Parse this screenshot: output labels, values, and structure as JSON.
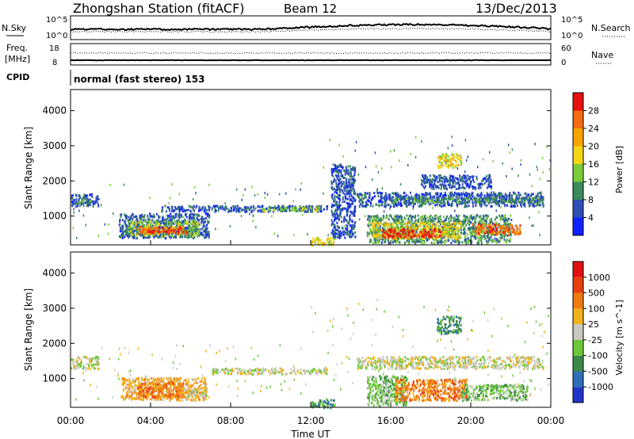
{
  "header": {
    "station": "Zhongshan Station (fitACF)",
    "beam": "Beam 12",
    "date": "13/Dec/2013"
  },
  "panels": {
    "nsky_label": "N.Sky",
    "nsearch_label": "N.Search",
    "freq_label": "Freq.",
    "freq_unit": "[MHz]",
    "nave_label": "Nave",
    "cpid_label": "CPID",
    "cpid_value": "normal (fast stereo) 153",
    "nsky_ticks": [
      "10^5",
      "10^0"
    ],
    "freq_ticks": [
      "18",
      "8"
    ],
    "nave_ticks": [
      "60",
      "0"
    ]
  },
  "chart_data": [
    {
      "type": "heatmap",
      "name": "power",
      "xlabel": "",
      "ylabel": "Slant Range [km]",
      "xlim": [
        0,
        24
      ],
      "ylim": [
        180,
        4600
      ],
      "yticks": [
        "1000",
        "2000",
        "3000",
        "4000"
      ],
      "colorbar": {
        "label": "Power [dB]",
        "ticks": [
          "4",
          "8",
          "12",
          "16",
          "20",
          "24",
          "28"
        ],
        "colors": [
          "#1020ff",
          "#2e4fb4",
          "#3a8a5a",
          "#7acb3a",
          "#f3d516",
          "#f7a400",
          "#f36a10",
          "#e61010"
        ]
      },
      "blobs": [
        {
          "t0": 0.0,
          "t1": 1.4,
          "r0": 1300,
          "r1": 1650,
          "c": 1
        },
        {
          "t0": 0.3,
          "t1": 1.1,
          "r0": 1380,
          "r1": 1520,
          "c": 2
        },
        {
          "t0": 2.4,
          "t1": 6.9,
          "r0": 400,
          "r1": 1100,
          "c": 1
        },
        {
          "t0": 2.8,
          "t1": 6.4,
          "r0": 450,
          "r1": 900,
          "c": 3
        },
        {
          "t0": 3.3,
          "t1": 5.8,
          "r0": 520,
          "r1": 720,
          "c": 6
        },
        {
          "t0": 3.8,
          "t1": 5.4,
          "r0": 560,
          "r1": 650,
          "c": 7
        },
        {
          "t0": 4.5,
          "t1": 12.8,
          "r0": 1150,
          "r1": 1320,
          "c": 1
        },
        {
          "t0": 9.5,
          "t1": 12.4,
          "r0": 1170,
          "r1": 1280,
          "c": 3
        },
        {
          "t0": 12.0,
          "t1": 13.2,
          "r0": 190,
          "r1": 420,
          "c": 4
        },
        {
          "t0": 13.0,
          "t1": 14.2,
          "r0": 400,
          "r1": 2500,
          "c": 1
        },
        {
          "t0": 14.3,
          "t1": 23.6,
          "r0": 1300,
          "r1": 1700,
          "c": 1
        },
        {
          "t0": 16.0,
          "t1": 23.6,
          "r0": 1400,
          "r1": 1550,
          "c": 2
        },
        {
          "t0": 14.8,
          "t1": 22.0,
          "r0": 250,
          "r1": 1050,
          "c": 2
        },
        {
          "t0": 15.0,
          "t1": 19.5,
          "r0": 380,
          "r1": 850,
          "c": 4
        },
        {
          "t0": 15.5,
          "t1": 18.5,
          "r0": 420,
          "r1": 650,
          "c": 7
        },
        {
          "t0": 18.3,
          "t1": 19.5,
          "r0": 2400,
          "r1": 2800,
          "c": 4
        },
        {
          "t0": 17.5,
          "t1": 21.0,
          "r0": 1800,
          "r1": 2200,
          "c": 1
        },
        {
          "t0": 20.0,
          "t1": 22.5,
          "r0": 500,
          "r1": 800,
          "c": 6
        }
      ]
    },
    {
      "type": "heatmap",
      "name": "velocity",
      "xlabel": "Time UT",
      "ylabel": "Slant Range [km]",
      "xlim": [
        0,
        24
      ],
      "ylim": [
        180,
        4600
      ],
      "xticks": [
        "00:00",
        "04:00",
        "08:00",
        "12:00",
        "16:00",
        "20:00",
        "00:00"
      ],
      "yticks": [
        "1000",
        "2000",
        "3000",
        "4000"
      ],
      "colorbar": {
        "label": "Velocity [m s^-1]",
        "ticks": [
          "1000",
          "500",
          "100",
          "25",
          "-25",
          "-100",
          "-500",
          "-1000"
        ],
        "colors": [
          "#2035c8",
          "#2e6fb8",
          "#3c8a4a",
          "#6cc83a",
          "#c8c8c0",
          "#f2b21c",
          "#f07a10",
          "#e83e10",
          "#e01010"
        ]
      },
      "blobs": [
        {
          "t0": 0.0,
          "t1": 1.4,
          "r0": 1300,
          "r1": 1650,
          "c": 4
        },
        {
          "t0": 2.5,
          "t1": 6.8,
          "r0": 400,
          "r1": 1050,
          "c": 5
        },
        {
          "t0": 3.3,
          "t1": 5.6,
          "r0": 480,
          "r1": 900,
          "c": 6
        },
        {
          "t0": 5.8,
          "t1": 6.8,
          "r0": 500,
          "r1": 700,
          "c": 4
        },
        {
          "t0": 7.0,
          "t1": 12.8,
          "r0": 1150,
          "r1": 1320,
          "c": 4
        },
        {
          "t0": 12.0,
          "t1": 13.2,
          "r0": 190,
          "r1": 420,
          "c": 2
        },
        {
          "t0": 14.3,
          "t1": 23.6,
          "r0": 1300,
          "r1": 1650,
          "c": 4
        },
        {
          "t0": 14.8,
          "t1": 16.8,
          "r0": 250,
          "r1": 1100,
          "c": 3
        },
        {
          "t0": 16.2,
          "t1": 19.8,
          "r0": 400,
          "r1": 1000,
          "c": 6
        },
        {
          "t0": 19.5,
          "t1": 22.8,
          "r0": 400,
          "r1": 850,
          "c": 3
        },
        {
          "t0": 18.3,
          "t1": 19.5,
          "r0": 2300,
          "r1": 2800,
          "c": 2
        }
      ]
    }
  ],
  "colors": {
    "axis": "#000000",
    "trace": "#000000"
  }
}
